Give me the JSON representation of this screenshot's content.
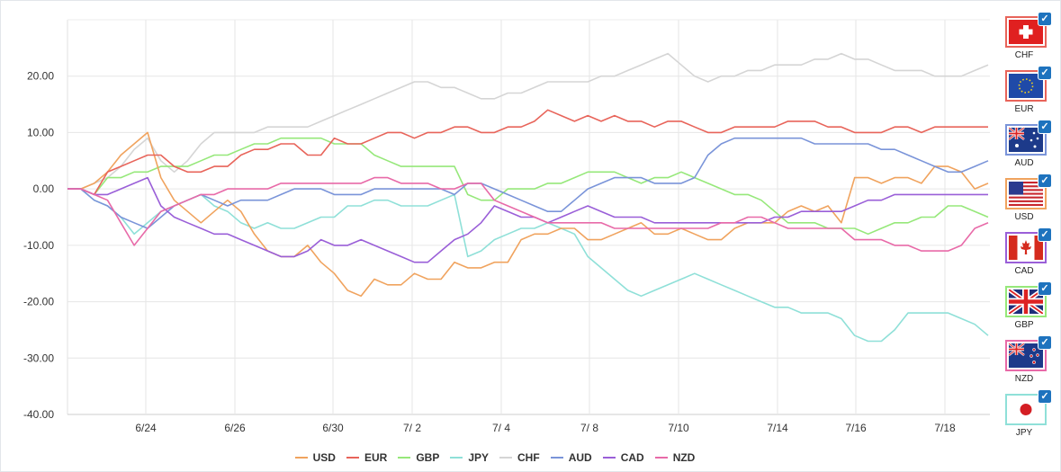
{
  "chart_data": {
    "type": "line",
    "y_ticks": [
      "20.00",
      "10.00",
      "0.00",
      "-10.00",
      "-20.00",
      "-30.00",
      "-40.00"
    ],
    "ylim": [
      -40,
      30
    ],
    "x_ticks": [
      "6/24",
      "6/26",
      "6/30",
      "7/ 2",
      "7/ 4",
      "7/ 8",
      "7/10",
      "7/14",
      "7/16",
      "7/18"
    ],
    "grid": true,
    "legend_position": "bottom",
    "series": [
      {
        "name": "USD",
        "color": "#f0a35e",
        "values": [
          0,
          0,
          1,
          3,
          6,
          8,
          10,
          2,
          -2,
          -4,
          -6,
          -4,
          -2,
          -4,
          -8,
          -11,
          -12,
          -12,
          -10,
          -13,
          -15,
          -18,
          -19,
          -16,
          -17,
          -17,
          -15,
          -16,
          -16,
          -13,
          -14,
          -14,
          -13,
          -13,
          -9,
          -8,
          -8,
          -7,
          -7,
          -9,
          -9,
          -8,
          -7,
          -6,
          -8,
          -8,
          -7,
          -8,
          -9,
          -9,
          -7,
          -6,
          -6,
          -6,
          -4,
          -3,
          -4,
          -3,
          -6,
          2,
          2,
          1,
          2,
          2,
          1,
          4,
          4,
          3,
          0,
          1
        ]
      },
      {
        "name": "EUR",
        "color": "#e8645a",
        "values": [
          0,
          0,
          -1,
          3,
          4,
          5,
          6,
          6,
          4,
          3,
          3,
          4,
          4,
          6,
          7,
          7,
          8,
          8,
          6,
          6,
          9,
          8,
          8,
          9,
          10,
          10,
          9,
          10,
          10,
          11,
          11,
          10,
          10,
          11,
          11,
          12,
          14,
          13,
          12,
          13,
          12,
          13,
          12,
          12,
          11,
          12,
          12,
          11,
          10,
          10,
          11,
          11,
          11,
          11,
          12,
          12,
          12,
          11,
          11,
          10,
          10,
          10,
          11,
          11,
          10,
          11,
          11,
          11,
          11,
          11
        ]
      },
      {
        "name": "GBP",
        "color": "#96e87a",
        "values": [
          0,
          0,
          -1,
          2,
          2,
          3,
          3,
          4,
          4,
          4,
          5,
          6,
          6,
          7,
          8,
          8,
          9,
          9,
          9,
          9,
          8,
          8,
          8,
          6,
          5,
          4,
          4,
          4,
          4,
          4,
          -1,
          -2,
          -2,
          0,
          0,
          0,
          1,
          1,
          2,
          3,
          3,
          3,
          2,
          1,
          2,
          2,
          3,
          2,
          1,
          0,
          -1,
          -1,
          -2,
          -4,
          -6,
          -6,
          -6,
          -7,
          -7,
          -7,
          -8,
          -7,
          -6,
          -6,
          -5,
          -5,
          -3,
          -3,
          -4,
          -5
        ]
      },
      {
        "name": "JPY",
        "color": "#8fe0d8",
        "values": [
          0,
          0,
          -2,
          -3,
          -5,
          -8,
          -6,
          -4,
          -3,
          -2,
          -1,
          -3,
          -4,
          -6,
          -7,
          -6,
          -7,
          -7,
          -6,
          -5,
          -5,
          -3,
          -3,
          -2,
          -2,
          -3,
          -3,
          -3,
          -2,
          -1,
          -12,
          -11,
          -9,
          -8,
          -7,
          -7,
          -6,
          -7,
          -8,
          -12,
          -14,
          -16,
          -18,
          -19,
          -18,
          -17,
          -16,
          -15,
          -16,
          -17,
          -18,
          -19,
          -20,
          -21,
          -21,
          -22,
          -22,
          -22,
          -23,
          -26,
          -27,
          -27,
          -25,
          -22,
          -22,
          -22,
          -22,
          -23,
          -24,
          -26
        ]
      },
      {
        "name": "CHF",
        "color": "#d5d5d5",
        "values": [
          0,
          0,
          1,
          2,
          4,
          7,
          9,
          5,
          3,
          5,
          8,
          10,
          10,
          10,
          10,
          11,
          11,
          11,
          11,
          12,
          13,
          14,
          15,
          16,
          17,
          18,
          19,
          19,
          18,
          18,
          17,
          16,
          16,
          17,
          17,
          18,
          19,
          19,
          19,
          19,
          20,
          20,
          21,
          22,
          23,
          24,
          22,
          20,
          19,
          20,
          20,
          21,
          21,
          22,
          22,
          22,
          23,
          23,
          24,
          23,
          23,
          22,
          21,
          21,
          21,
          20,
          20,
          20,
          21,
          22
        ]
      },
      {
        "name": "AUD",
        "color": "#7a94d9",
        "values": [
          0,
          0,
          -2,
          -3,
          -5,
          -6,
          -7,
          -5,
          -3,
          -2,
          -1,
          -2,
          -3,
          -2,
          -2,
          -2,
          -1,
          0,
          0,
          0,
          -1,
          -1,
          -1,
          0,
          0,
          0,
          0,
          0,
          0,
          -1,
          1,
          1,
          0,
          -1,
          -2,
          -3,
          -4,
          -4,
          -2,
          0,
          1,
          2,
          2,
          2,
          1,
          1,
          1,
          2,
          6,
          8,
          9,
          9,
          9,
          9,
          9,
          9,
          8,
          8,
          8,
          8,
          8,
          7,
          7,
          6,
          5,
          4,
          3,
          3,
          4,
          5
        ]
      },
      {
        "name": "CAD",
        "color": "#9a5fd8",
        "values": [
          0,
          0,
          -1,
          -1,
          0,
          1,
          2,
          -3,
          -5,
          -6,
          -7,
          -8,
          -8,
          -9,
          -10,
          -11,
          -12,
          -12,
          -11,
          -9,
          -10,
          -10,
          -9,
          -10,
          -11,
          -12,
          -13,
          -13,
          -11,
          -9,
          -8,
          -6,
          -3,
          -4,
          -5,
          -5,
          -6,
          -5,
          -4,
          -3,
          -4,
          -5,
          -5,
          -5,
          -6,
          -6,
          -6,
          -6,
          -6,
          -6,
          -6,
          -6,
          -6,
          -5,
          -5,
          -4,
          -4,
          -4,
          -4,
          -3,
          -2,
          -2,
          -1,
          -1,
          -1,
          -1,
          -1,
          -1,
          -1,
          -1
        ]
      },
      {
        "name": "NZD",
        "color": "#e86aa8",
        "values": [
          0,
          0,
          -1,
          -2,
          -6,
          -10,
          -7,
          -4,
          -3,
          -2,
          -1,
          -1,
          0,
          0,
          0,
          0,
          1,
          1,
          1,
          1,
          1,
          1,
          1,
          2,
          2,
          1,
          1,
          1,
          0,
          0,
          1,
          1,
          -2,
          -3,
          -4,
          -5,
          -6,
          -6,
          -6,
          -6,
          -6,
          -7,
          -7,
          -7,
          -7,
          -7,
          -7,
          -7,
          -7,
          -6,
          -6,
          -5,
          -5,
          -6,
          -7,
          -7,
          -7,
          -7,
          -7,
          -9,
          -9,
          -9,
          -10,
          -10,
          -11,
          -11,
          -11,
          -10,
          -7,
          -6
        ]
      }
    ]
  },
  "sidebar": {
    "items": [
      {
        "label": "CHF",
        "icon": "swiss-flag-icon",
        "border": "#e8645a"
      },
      {
        "label": "EUR",
        "icon": "eu-flag-icon",
        "border": "#e8645a"
      },
      {
        "label": "AUD",
        "icon": "australia-flag-icon",
        "border": "#7a94d9"
      },
      {
        "label": "USD",
        "icon": "us-flag-icon",
        "border": "#f0a35e"
      },
      {
        "label": "CAD",
        "icon": "canada-flag-icon",
        "border": "#9a5fd8"
      },
      {
        "label": "GBP",
        "icon": "uk-flag-icon",
        "border": "#96e87a"
      },
      {
        "label": "NZD",
        "icon": "nz-flag-icon",
        "border": "#e86aa8"
      },
      {
        "label": "JPY",
        "icon": "japan-flag-icon",
        "border": "#8fe0d8"
      }
    ],
    "check_glyph": "✓"
  }
}
